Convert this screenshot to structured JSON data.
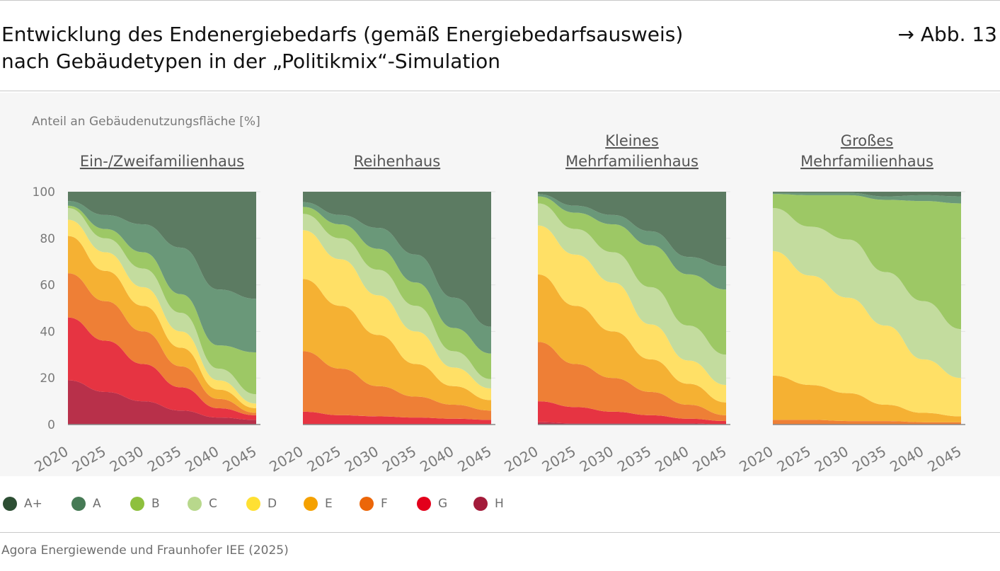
{
  "header": {
    "title_line1": "Entwicklung des Endenergiebedarfs (gemäß Energiebedarfsausweis)",
    "title_line2": "nach Gebäudetypen in der „Politikmix“-Simulation",
    "figure_ref": "→ Abb. 13"
  },
  "footer": {
    "source": "Agora Energiewende und Fraunhofer IEE (2025)"
  },
  "chart_data": {
    "type": "area",
    "stacked": true,
    "ylabel": "Anteil an Gebäudenutzungsfläche [%]",
    "ylim": [
      0,
      100
    ],
    "yticks": [
      0,
      20,
      40,
      60,
      80,
      100
    ],
    "x": [
      2020,
      2025,
      2030,
      2035,
      2040,
      2045
    ],
    "grid": true,
    "legend_position": "bottom",
    "classes": [
      {
        "name": "H",
        "color": "#a31b3a",
        "area_color": "#b8304a"
      },
      {
        "name": "G",
        "color": "#e3001b",
        "area_color": "#e63442"
      },
      {
        "name": "F",
        "color": "#ec6608",
        "area_color": "#ee7f36"
      },
      {
        "name": "E",
        "color": "#f5a100",
        "area_color": "#f5b133"
      },
      {
        "name": "D",
        "color": "#ffe033",
        "area_color": "#ffe066"
      },
      {
        "name": "C",
        "color": "#b8d88c",
        "area_color": "#c3dc9e"
      },
      {
        "name": "B",
        "color": "#8ec03e",
        "area_color": "#9dc865"
      },
      {
        "name": "A",
        "color": "#467a55",
        "area_color": "#6a9879"
      },
      {
        "name": "A+",
        "color": "#2d4e33",
        "area_color": "#5c7b62"
      }
    ],
    "legend_order": [
      "A+",
      "A",
      "B",
      "C",
      "D",
      "E",
      "F",
      "G",
      "H"
    ],
    "panels": [
      {
        "title_lines": [
          "",
          "Ein-/Zweifamilienhaus"
        ],
        "series": {
          "H": [
            19,
            14,
            10,
            6,
            3,
            2
          ],
          "G": [
            27,
            22,
            16,
            10,
            4,
            2
          ],
          "F": [
            19,
            17,
            14,
            9,
            4,
            1
          ],
          "E": [
            16,
            13,
            11,
            8,
            4,
            2
          ],
          "D": [
            7,
            8,
            8,
            7,
            4,
            2
          ],
          "C": [
            5,
            6,
            8,
            8,
            5,
            4
          ],
          "B": [
            1,
            4,
            7,
            8,
            10,
            18
          ],
          "A": [
            2,
            6,
            12,
            20,
            24,
            23
          ],
          "A+": [
            4,
            10,
            14,
            24,
            42,
            46
          ]
        }
      },
      {
        "title_lines": [
          "",
          "Reihenhaus"
        ],
        "series": {
          "H": [
            0,
            0,
            0,
            0,
            0,
            0
          ],
          "G": [
            5.5,
            4,
            3.5,
            3,
            2.5,
            2
          ],
          "F": [
            26,
            20,
            13,
            9,
            6,
            4
          ],
          "E": [
            31,
            27,
            22,
            14,
            8,
            4.5
          ],
          "D": [
            21,
            20,
            17,
            14,
            8,
            5
          ],
          "C": [
            7,
            9,
            11,
            11,
            7,
            4
          ],
          "B": [
            3,
            6,
            9,
            10,
            10,
            11
          ],
          "A": [
            2,
            4,
            9,
            12,
            13,
            11.5
          ],
          "A+": [
            4.5,
            10,
            15.5,
            27,
            45.5,
            58
          ]
        }
      },
      {
        "title_lines": [
          "Kleines",
          "Mehrfamilienhaus"
        ],
        "series": {
          "H": [
            1,
            0.5,
            0.5,
            0.5,
            0.5,
            0
          ],
          "G": [
            9,
            7,
            5,
            3.5,
            2,
            1.5
          ],
          "F": [
            25.5,
            18.5,
            14.5,
            10,
            6,
            2.5
          ],
          "E": [
            29,
            25,
            20,
            14,
            9,
            5.5
          ],
          "D": [
            21,
            22,
            21,
            15,
            10,
            7.5
          ],
          "C": [
            9.5,
            11,
            13,
            16,
            15,
            13
          ],
          "B": [
            3,
            7,
            12,
            18,
            22,
            28
          ],
          "A": [
            1,
            3,
            4,
            6,
            7.5,
            10
          ],
          "A+": [
            1,
            6,
            10,
            17,
            28,
            32
          ]
        }
      },
      {
        "title_lines": [
          "Großes",
          "Mehrfamilienhaus"
        ],
        "series": {
          "H": [
            0,
            0,
            0,
            0,
            0,
            0
          ],
          "G": [
            0,
            0,
            0,
            0,
            0,
            0
          ],
          "F": [
            2,
            2,
            1.5,
            1.5,
            1,
            1
          ],
          "E": [
            19,
            15,
            12,
            7,
            4,
            2.5
          ],
          "D": [
            53.5,
            47,
            41,
            34,
            23,
            16.5
          ],
          "C": [
            18.5,
            21,
            25,
            23,
            25,
            21
          ],
          "B": [
            6,
            13.5,
            19,
            31,
            43,
            54
          ],
          "A": [
            0.5,
            1,
            1,
            1.5,
            2.5,
            3
          ],
          "A+": [
            0.5,
            0.5,
            0.5,
            2,
            1.5,
            2
          ]
        }
      }
    ]
  }
}
